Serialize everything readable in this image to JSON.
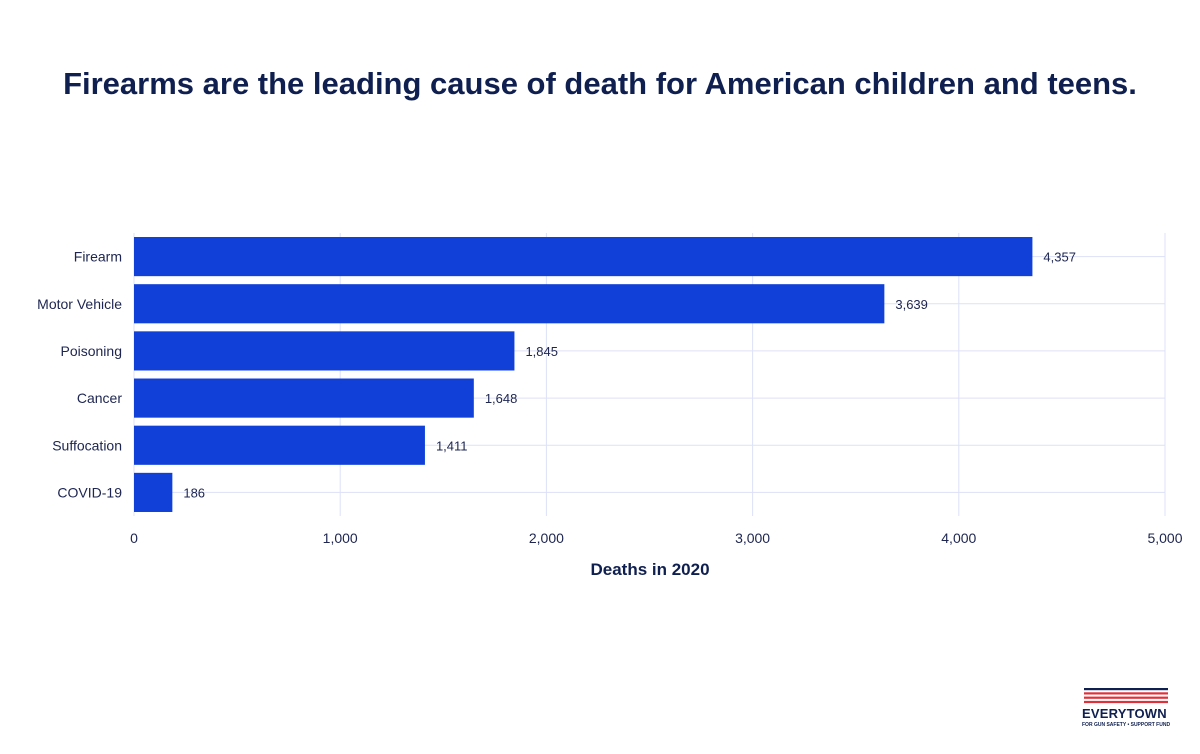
{
  "title": "Firearms are the leading cause of death for American children and teens.",
  "chart_data": {
    "type": "bar",
    "orientation": "horizontal",
    "title": "Firearms are the leading cause of death for American children and teens.",
    "categories": [
      "Firearm",
      "Motor Vehicle",
      "Poisoning",
      "Cancer",
      "Suffocation",
      "COVID-19"
    ],
    "values": [
      4357,
      3639,
      1845,
      1648,
      1411,
      186
    ],
    "value_labels": [
      "4,357",
      "3,639",
      "1,845",
      "1,648",
      "1,411",
      "186"
    ],
    "xlabel": "Deaths in 2020",
    "ylabel": "",
    "xlim": [
      0,
      5000
    ],
    "x_ticks": [
      0,
      1000,
      2000,
      3000,
      4000,
      5000
    ],
    "x_tick_labels": [
      "0",
      "1,000",
      "2,000",
      "3,000",
      "4,000",
      "5,000"
    ],
    "grid": true,
    "bar_color": "#1040d8",
    "grid_color": "#dde1f7"
  },
  "logo": {
    "name": "EVERYTOWN",
    "tagline": "FOR GUN SAFETY • SUPPORT FUND",
    "stripe_colors": [
      "#0f1f4f",
      "#e0313a"
    ]
  }
}
